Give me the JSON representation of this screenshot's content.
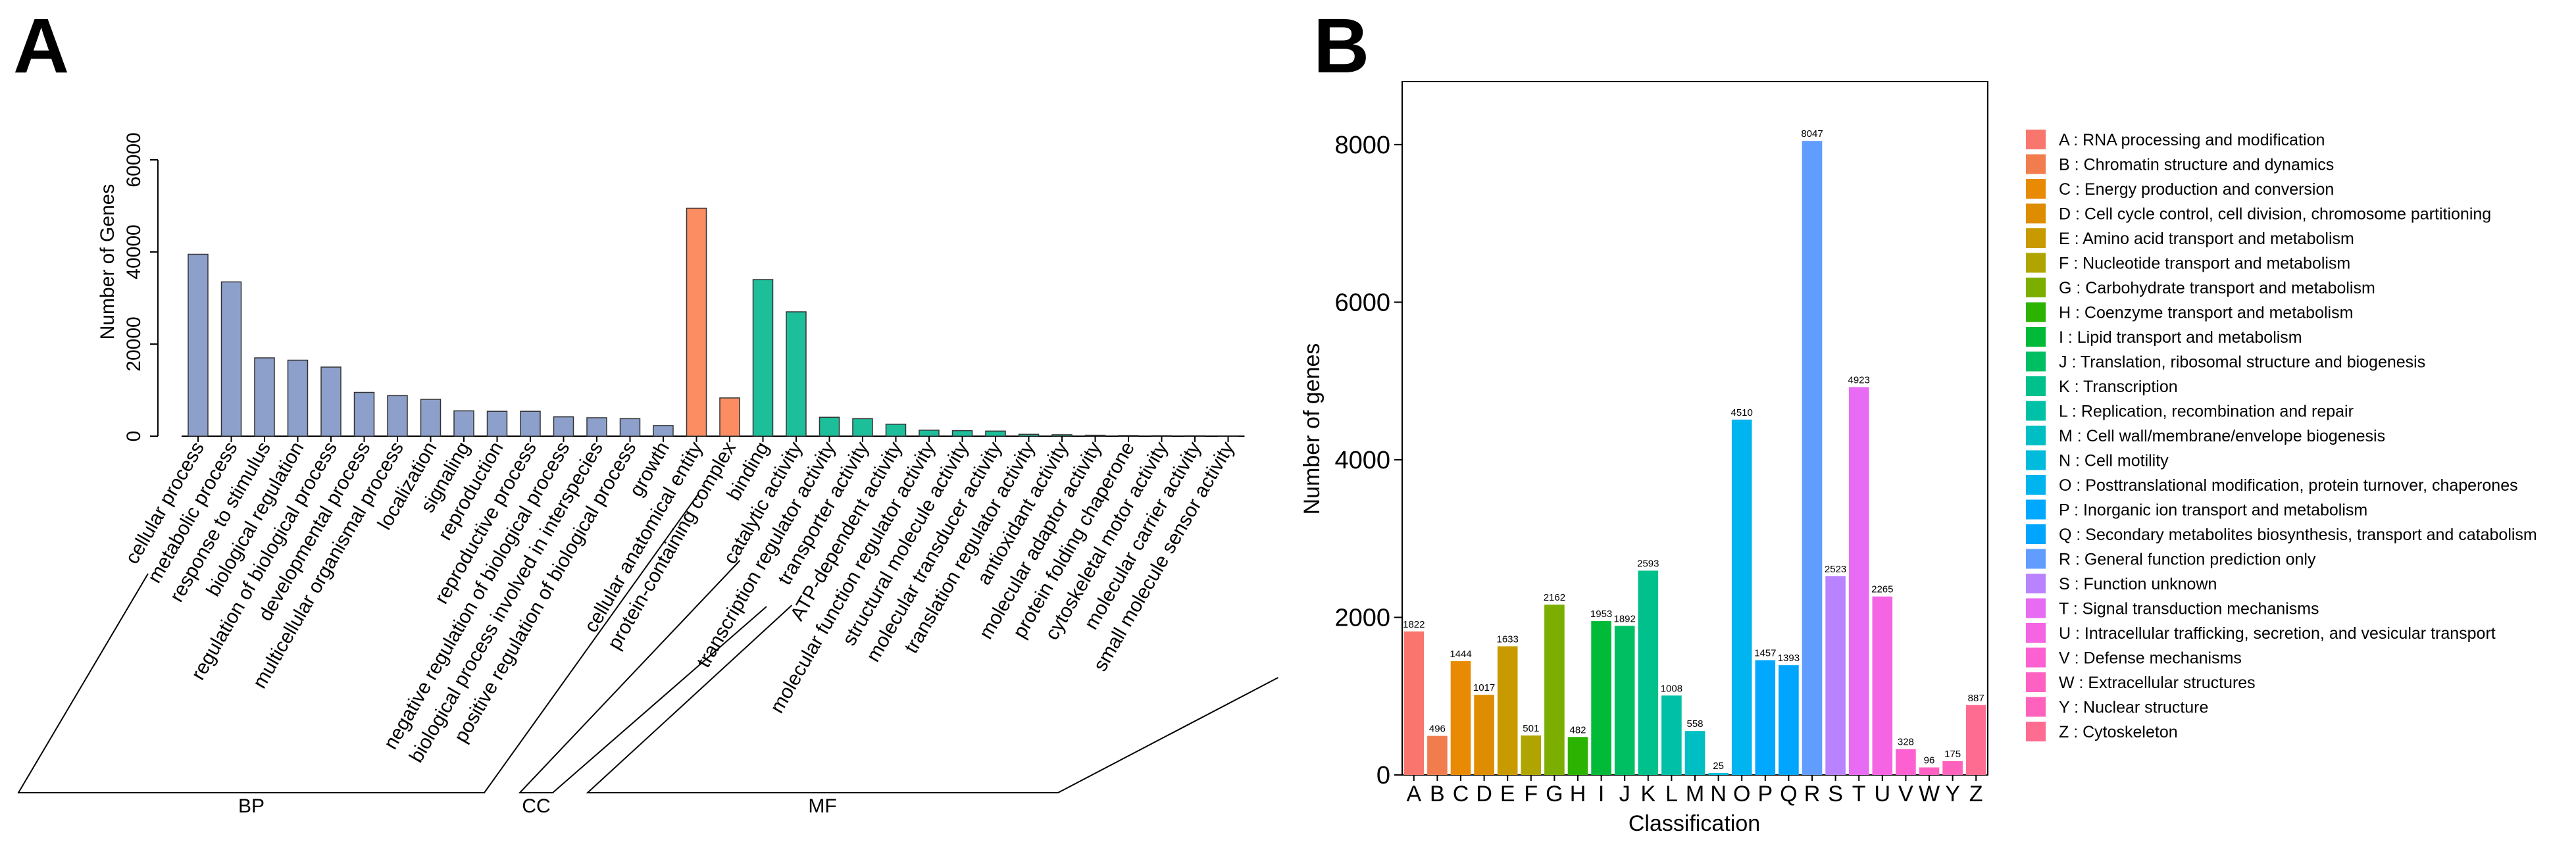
{
  "panels": {
    "a": {
      "letter": "A"
    },
    "b": {
      "letter": "B"
    }
  },
  "chart_data": [
    {
      "id": "A",
      "type": "bar",
      "ylabel": "Number of Genes",
      "ylim": [
        0,
        60000
      ],
      "yticks": [
        0,
        20000,
        40000,
        60000
      ],
      "grid": false,
      "categories": [
        "cellular process",
        "metabolic process",
        "response to stimulus",
        "biological regulation",
        "regulation of biological process",
        "developmental process",
        "multicellular organismal process",
        "localization",
        "signaling",
        "reproduction",
        "reproductive process",
        "negative regulation of biological process",
        "biological process involved in interspecies",
        "positive regulation of biological process",
        "growth",
        "cellular anatomical entity",
        "protein-containing complex",
        "binding",
        "catalytic activity",
        "transcription regulator activity",
        "transporter activity",
        "ATP-dependent activity",
        "molecular function regulator activity",
        "structural molecule activity",
        "molecular transducer activity",
        "translation regulator activity",
        "antioxidant activity",
        "molecular adaptor activity",
        "protein folding chaperone",
        "cytoskeletal motor activity",
        "molecular carrier activity",
        "small molecule sensor activity"
      ],
      "values": [
        39500,
        33500,
        17000,
        16500,
        15000,
        9500,
        8800,
        8000,
        5500,
        5400,
        5400,
        4200,
        4000,
        3800,
        2300,
        49500,
        8300,
        34000,
        27000,
        4100,
        3800,
        2600,
        1300,
        1200,
        1100,
        400,
        300,
        200,
        150,
        120,
        100,
        80
      ],
      "groups": [
        {
          "label": "BP",
          "start": 0,
          "end": 14,
          "color": "#8DA0CB"
        },
        {
          "label": "CC",
          "start": 15,
          "end": 16,
          "color": "#FC8D62"
        },
        {
          "label": "MF",
          "start": 17,
          "end": 31,
          "color": "#1DBF9B"
        }
      ]
    },
    {
      "id": "B",
      "type": "bar",
      "xlabel": "Classification",
      "ylabel": "Number of genes",
      "ylim": [
        0,
        8800
      ],
      "yticks": [
        0,
        2000,
        4000,
        6000,
        8000
      ],
      "grid": false,
      "legend_position": "right",
      "categories": [
        "A",
        "B",
        "C",
        "D",
        "E",
        "F",
        "G",
        "H",
        "I",
        "J",
        "K",
        "L",
        "M",
        "N",
        "O",
        "P",
        "Q",
        "R",
        "S",
        "T",
        "U",
        "V",
        "W",
        "Y",
        "Z"
      ],
      "values": [
        1822,
        496,
        1444,
        1017,
        1633,
        501,
        2162,
        482,
        1953,
        1892,
        2593,
        1008,
        558,
        25,
        4510,
        1457,
        1393,
        8047,
        2523,
        4923,
        2265,
        328,
        96,
        175,
        887
      ],
      "colors": [
        "#F8766D",
        "#F17D4F",
        "#E98A05",
        "#DE8C00",
        "#C99A00",
        "#B0A500",
        "#7CAE00",
        "#2CB300",
        "#00BA38",
        "#00BE62",
        "#00C08B",
        "#00C1A7",
        "#00BFC4",
        "#00BBDB",
        "#00B4F0",
        "#00A9FF",
        "#00A5FF",
        "#619CFF",
        "#B983FF",
        "#E76BF3",
        "#F564E3",
        "#FD61D1",
        "#FF61C3",
        "#FF62BC",
        "#FF6C91"
      ],
      "legend": [
        "A : RNA processing and modification",
        "B : Chromatin structure and dynamics",
        "C : Energy production and conversion",
        "D : Cell cycle control, cell division, chromosome partitioning",
        "E : Amino acid transport and metabolism",
        "F : Nucleotide transport and metabolism",
        "G : Carbohydrate transport and metabolism",
        "H : Coenzyme transport and metabolism",
        "I : Lipid transport and metabolism",
        "J : Translation, ribosomal structure and biogenesis",
        "K : Transcription",
        "L : Replication, recombination and repair",
        "M : Cell wall/membrane/envelope biogenesis",
        "N : Cell motility",
        "O : Posttranslational modification, protein turnover, chaperones",
        "P : Inorganic ion transport and metabolism",
        "Q : Secondary metabolites biosynthesis, transport and catabolism",
        "R : General function prediction only",
        "S : Function unknown",
        "T : Signal transduction mechanisms",
        "U : Intracellular trafficking, secretion, and vesicular transport",
        "V : Defense mechanisms",
        "W : Extracellular structures",
        "Y : Nuclear structure",
        "Z : Cytoskeleton"
      ]
    }
  ]
}
